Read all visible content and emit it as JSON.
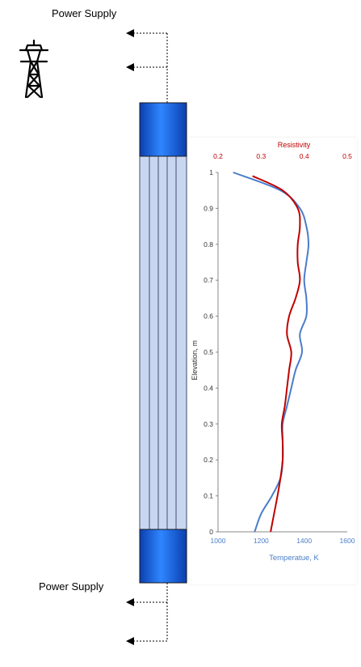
{
  "labels": {
    "top_supply": "Power Supply",
    "bottom_supply": "Power Supply"
  },
  "icons": {
    "tower": "transmission-tower-icon",
    "arrow": "arrow-left-icon"
  },
  "colors": {
    "electrode_blue": "#1f6fe0",
    "tube_fill": "#c9d6f2",
    "resistivity_red": "#c00000",
    "temperature_blue": "#4a7cc9"
  },
  "chart_data": {
    "type": "line",
    "ylabel": "Elevation, m",
    "y_ticks": [
      "0",
      "0.1",
      "0.2",
      "0.3",
      "0.4",
      "0.5",
      "0.6",
      "0.7",
      "0.8",
      "0.9",
      "1"
    ],
    "ylim": [
      0,
      1
    ],
    "x_bottom": {
      "label": "Temperatue, K",
      "ticks": [
        "1000",
        "1200",
        "1400",
        "1600"
      ],
      "range": [
        1000,
        1600
      ]
    },
    "x_top": {
      "label": "Resistivity",
      "ticks": [
        "0.2",
        "0.3",
        "0.4",
        "0.5"
      ],
      "range": [
        0.2,
        0.5
      ]
    },
    "series": [
      {
        "axis": "bottom",
        "color": "#4a7cc9",
        "points": [
          [
            1170,
            0.0
          ],
          [
            1200,
            0.05
          ],
          [
            1250,
            0.1
          ],
          [
            1290,
            0.15
          ],
          [
            1300,
            0.2
          ],
          [
            1300,
            0.25
          ],
          [
            1300,
            0.3
          ],
          [
            1320,
            0.35
          ],
          [
            1340,
            0.4
          ],
          [
            1360,
            0.45
          ],
          [
            1390,
            0.5
          ],
          [
            1380,
            0.55
          ],
          [
            1410,
            0.6
          ],
          [
            1410,
            0.65
          ],
          [
            1400,
            0.7
          ],
          [
            1410,
            0.75
          ],
          [
            1420,
            0.8
          ],
          [
            1410,
            0.85
          ],
          [
            1380,
            0.9
          ],
          [
            1290,
            0.95
          ],
          [
            1070,
            1.0
          ]
        ]
      },
      {
        "axis": "top",
        "color": "#c00000",
        "points": [
          [
            0.322,
            0.0
          ],
          [
            0.33,
            0.05
          ],
          [
            0.338,
            0.1
          ],
          [
            0.345,
            0.15
          ],
          [
            0.35,
            0.2
          ],
          [
            0.35,
            0.25
          ],
          [
            0.348,
            0.3
          ],
          [
            0.355,
            0.35
          ],
          [
            0.36,
            0.4
          ],
          [
            0.365,
            0.45
          ],
          [
            0.37,
            0.5
          ],
          [
            0.36,
            0.55
          ],
          [
            0.365,
            0.6
          ],
          [
            0.38,
            0.65
          ],
          [
            0.39,
            0.7
          ],
          [
            0.385,
            0.75
          ],
          [
            0.385,
            0.8
          ],
          [
            0.39,
            0.85
          ],
          [
            0.385,
            0.9
          ],
          [
            0.35,
            0.95
          ],
          [
            0.28,
            0.99
          ]
        ]
      }
    ]
  }
}
